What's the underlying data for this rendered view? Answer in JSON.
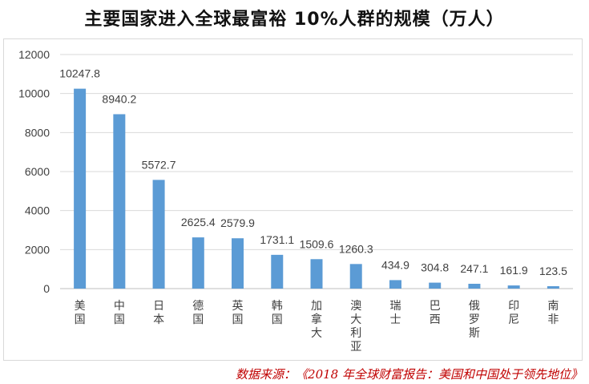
{
  "chart_data": {
    "type": "bar",
    "title": "主要国家进入全球最富裕 10%人群的规模（万人）",
    "categories": [
      "美国",
      "中国",
      "日本",
      "德国",
      "英国",
      "韩国",
      "加拿大",
      "澳大利亚",
      "瑞士",
      "巴西",
      "俄罗斯",
      "印尼",
      "南非"
    ],
    "values": [
      10247.8,
      8940.2,
      5572.7,
      2625.4,
      2579.9,
      1731.1,
      1509.6,
      1260.3,
      434.9,
      304.8,
      247.1,
      161.9,
      123.5
    ],
    "data_labels": [
      "10247.8",
      "8940.2",
      "5572.7",
      "2625.4",
      "2579.9",
      "1731.1",
      "1509.6",
      "1260.3",
      "434.9",
      "304.8",
      "247.1",
      "161.9",
      "123.5"
    ],
    "ylim": [
      0,
      12000
    ],
    "yticks": [
      0,
      2000,
      4000,
      6000,
      8000,
      10000,
      12000
    ],
    "grid": true,
    "legend": "none",
    "bar_color": "#5b9bd5",
    "xlabel": "",
    "ylabel": ""
  },
  "source": "数据来源：《2018 年全球财富报告：美国和中国处于领先地位》"
}
